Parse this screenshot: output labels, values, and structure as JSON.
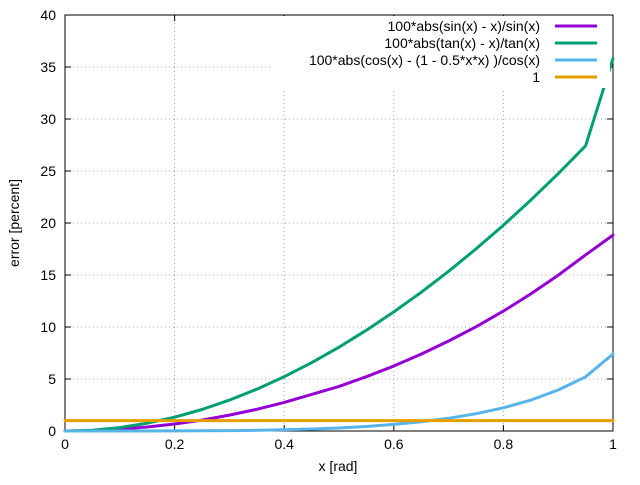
{
  "chart_data": {
    "type": "line",
    "title": "",
    "xlabel": "x [rad]",
    "ylabel": "error [percent]",
    "xlim": [
      0,
      1
    ],
    "ylim": [
      0,
      40
    ],
    "x_ticks": [
      0,
      0.2,
      0.4,
      0.6,
      0.8,
      1
    ],
    "y_ticks": [
      0,
      5,
      10,
      15,
      20,
      25,
      30,
      35,
      40
    ],
    "x_tick_labels": [
      "0",
      "0.2",
      "0.4",
      "0.6",
      "0.8",
      "1"
    ],
    "y_tick_labels": [
      "0",
      "5",
      "10",
      "15",
      "20",
      "25",
      "30",
      "35",
      "40"
    ],
    "grid": true,
    "legend_position": "top-right",
    "x": [
      0,
      0.05,
      0.1,
      0.15,
      0.2,
      0.25,
      0.3,
      0.35,
      0.4,
      0.45,
      0.5,
      0.55,
      0.6,
      0.65,
      0.7,
      0.75,
      0.8,
      0.85,
      0.9,
      0.95,
      1
    ],
    "series": [
      {
        "name": "100*abs(sin(x) - x)/sin(x)",
        "color": "#9400d3",
        "values": [
          0,
          0.04,
          0.17,
          0.38,
          0.67,
          1.05,
          1.53,
          2.09,
          2.75,
          3.52,
          4.29,
          5.22,
          6.25,
          7.39,
          8.65,
          10.02,
          11.53,
          13.18,
          14.98,
          16.93,
          18.84
        ]
      },
      {
        "name": "100*abs(tan(x) - x)/tan(x)",
        "color": "#009e73",
        "values": [
          0,
          0.08,
          0.33,
          0.75,
          1.33,
          2.07,
          2.97,
          4.02,
          5.22,
          6.57,
          8.06,
          9.69,
          11.45,
          13.34,
          15.36,
          17.51,
          19.79,
          22.2,
          24.74,
          27.42,
          35.8
        ]
      },
      {
        "name": "100*abs(cos(x) - (1 - 0.5*x*x) )/cos(x)",
        "color": "#56b4e9",
        "values": [
          0,
          0.0,
          0.0,
          0.0,
          0.01,
          0.02,
          0.04,
          0.07,
          0.12,
          0.19,
          0.29,
          0.43,
          0.63,
          0.88,
          1.22,
          1.66,
          2.23,
          2.97,
          3.94,
          5.21,
          7.4
        ]
      },
      {
        "name": "1",
        "color": "#e69f00",
        "values": [
          1,
          1,
          1,
          1,
          1,
          1,
          1,
          1,
          1,
          1,
          1,
          1,
          1,
          1,
          1,
          1,
          1,
          1,
          1,
          1,
          1
        ]
      }
    ]
  }
}
